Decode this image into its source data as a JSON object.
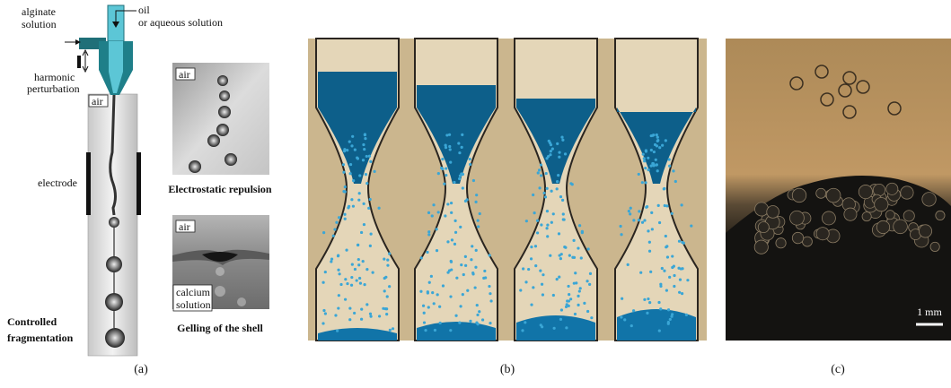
{
  "panel_a": {
    "label": "(a)",
    "nozzle": {
      "inlet_top": [
        "oil",
        "or aqueous solution"
      ],
      "inlet_side": [
        "alginate",
        "solution"
      ],
      "perturbation": [
        "harmonic",
        "perturbation"
      ]
    },
    "column": {
      "air": "air",
      "electrode": "electrode",
      "caption": [
        "Controlled",
        "fragmentation"
      ]
    },
    "inset_repulsion": {
      "air": "air",
      "caption": "Electrostatic repulsion"
    },
    "inset_gelling": {
      "air": "air",
      "bath": [
        "calcium",
        "solution"
      ],
      "caption": "Gelling of the  shell"
    }
  },
  "panel_b": {
    "label": "(b)"
  },
  "panel_c": {
    "label": "(c)",
    "scale_bar": "1 mm"
  }
}
